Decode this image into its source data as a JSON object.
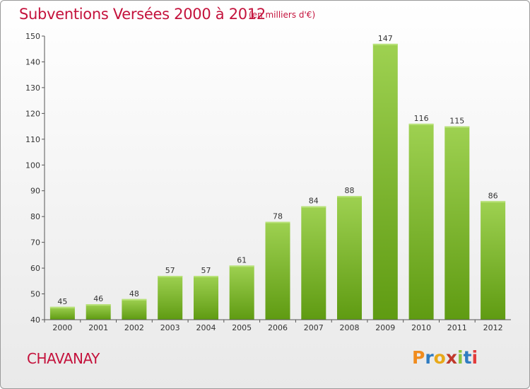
{
  "header": {
    "title": "Subventions Versées 2000 à 2012",
    "subtitle": "(en milliers d'€)"
  },
  "footer": {
    "commune": "CHAVANAY",
    "logo": "Proxiti"
  },
  "colors": {
    "title": "#c4123c",
    "bar_top": "#9ed151",
    "bar_bottom": "#5f9b12",
    "logo": [
      "#f08c1e",
      "#2f7cc1",
      "#e8a91a",
      "#c0392b",
      "#8ac43f",
      "#2f7cc1",
      "#e23b3b"
    ]
  },
  "chart_data": {
    "type": "bar",
    "title": "Subventions Versées 2000 à 2012",
    "subtitle": "(en milliers d'€)",
    "categories": [
      "2000",
      "2001",
      "2002",
      "2003",
      "2004",
      "2005",
      "2006",
      "2007",
      "2008",
      "2009",
      "2010",
      "2011",
      "2012"
    ],
    "values": [
      45,
      46,
      48,
      57,
      57,
      61,
      78,
      84,
      88,
      147,
      116,
      115,
      86
    ],
    "ylim": [
      40,
      150
    ],
    "yticks": [
      40,
      50,
      60,
      70,
      80,
      90,
      100,
      110,
      120,
      130,
      140,
      150
    ],
    "grid": false,
    "legend": "none"
  }
}
